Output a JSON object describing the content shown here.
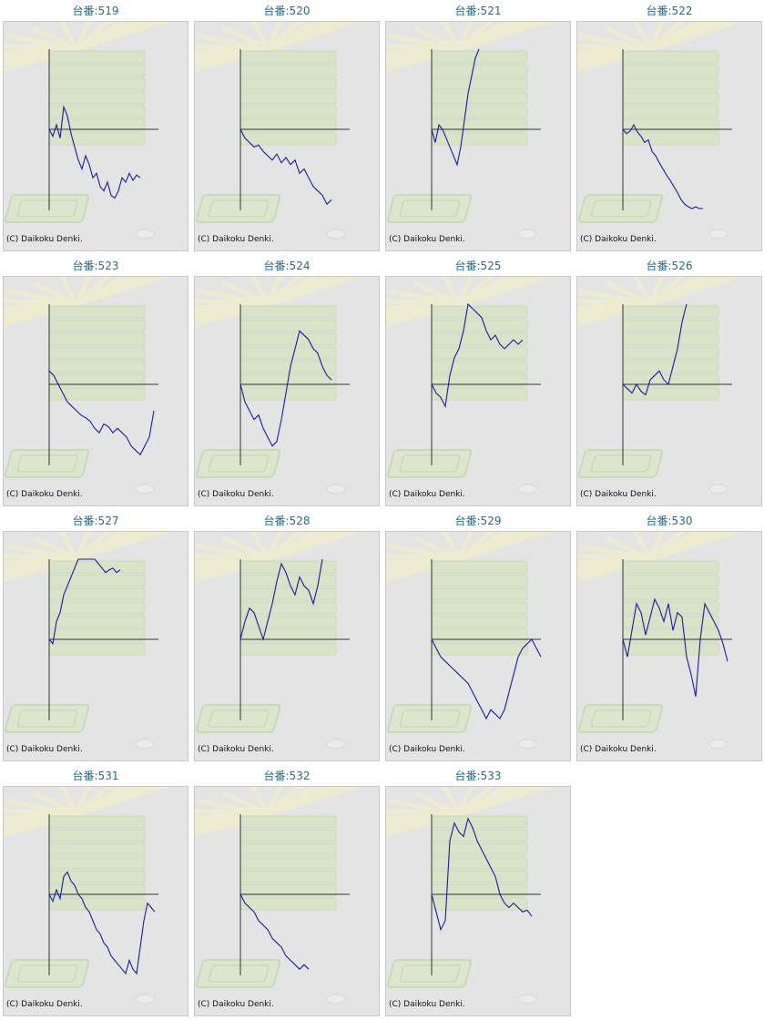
{
  "copyright_text": "(C) Daikoku Denki.",
  "colors": {
    "line": "#1a1aa0",
    "axis": "#333333",
    "background": "#e4e4e4",
    "title": "#2a6a8a"
  },
  "chart_data": [
    {
      "type": "line",
      "title": "台番:519",
      "x": [
        0,
        4,
        8,
        12,
        16,
        20,
        24,
        28,
        32,
        36,
        40,
        44,
        48,
        52,
        56,
        60,
        64,
        68,
        72,
        76,
        80,
        84,
        88,
        92,
        96,
        100
      ],
      "y": [
        0,
        -8,
        5,
        -10,
        25,
        15,
        -5,
        -20,
        -35,
        -45,
        -30,
        -40,
        -55,
        -50,
        -65,
        -70,
        -60,
        -75,
        -78,
        -70,
        -55,
        -60,
        -50,
        -58,
        -52,
        -55
      ],
      "ylim": [
        -90,
        90
      ]
    },
    {
      "type": "line",
      "title": "台番:520",
      "x": [
        0,
        5,
        10,
        15,
        20,
        25,
        30,
        35,
        40,
        45,
        50,
        55,
        60,
        65,
        70,
        75,
        80,
        85,
        90,
        95,
        100
      ],
      "y": [
        0,
        -10,
        -15,
        -20,
        -18,
        -25,
        -30,
        -35,
        -28,
        -38,
        -32,
        -40,
        -35,
        -50,
        -45,
        -55,
        -65,
        -70,
        -75,
        -85,
        -80
      ],
      "ylim": [
        -90,
        90
      ]
    },
    {
      "type": "line",
      "title": "台番:521",
      "x": [
        0,
        4,
        8,
        12,
        16,
        20,
        24,
        28,
        32,
        36,
        40,
        44,
        48,
        52
      ],
      "y": [
        0,
        -15,
        5,
        0,
        -10,
        -20,
        -30,
        -40,
        -20,
        10,
        40,
        60,
        80,
        90
      ],
      "ylim": [
        -90,
        90
      ]
    },
    {
      "type": "line",
      "title": "台番:522",
      "x": [
        0,
        4,
        8,
        12,
        16,
        20,
        24,
        28,
        32,
        36,
        40,
        44,
        48,
        52,
        56,
        60,
        64,
        68,
        72,
        76,
        80,
        84,
        88
      ],
      "y": [
        0,
        -5,
        -2,
        5,
        -3,
        -8,
        -15,
        -12,
        -25,
        -30,
        -38,
        -45,
        -52,
        -58,
        -65,
        -72,
        -80,
        -85,
        -88,
        -90,
        -88,
        -90,
        -90
      ],
      "ylim": [
        -90,
        90
      ]
    },
    {
      "type": "line",
      "title": "台番:523",
      "x": [
        0,
        5,
        10,
        15,
        20,
        25,
        30,
        35,
        40,
        45,
        50,
        55,
        60,
        65,
        70,
        75,
        80,
        85,
        90,
        95,
        100,
        105,
        110,
        115
      ],
      "y": [
        15,
        10,
        0,
        -10,
        -20,
        -25,
        -30,
        -35,
        -38,
        -42,
        -50,
        -55,
        -45,
        -48,
        -55,
        -50,
        -55,
        -60,
        -70,
        -75,
        -80,
        -70,
        -60,
        -30
      ],
      "ylim": [
        -90,
        90
      ]
    },
    {
      "type": "line",
      "title": "台番:524",
      "x": [
        0,
        5,
        10,
        15,
        20,
        25,
        30,
        35,
        40,
        45,
        50,
        55,
        60,
        65,
        70,
        75,
        80,
        85,
        90,
        95,
        100
      ],
      "y": [
        0,
        -20,
        -30,
        -40,
        -35,
        -50,
        -60,
        -70,
        -65,
        -40,
        -10,
        20,
        40,
        60,
        55,
        50,
        40,
        35,
        20,
        10,
        5
      ],
      "ylim": [
        -90,
        90
      ]
    },
    {
      "type": "line",
      "title": "台番:525",
      "x": [
        0,
        5,
        10,
        15,
        20,
        25,
        30,
        35,
        40,
        45,
        50,
        55,
        60,
        65,
        70,
        75,
        80,
        85,
        90,
        95,
        100
      ],
      "y": [
        0,
        -10,
        -15,
        -25,
        10,
        30,
        40,
        60,
        90,
        85,
        80,
        75,
        60,
        50,
        55,
        45,
        40,
        45,
        50,
        45,
        50
      ],
      "ylim": [
        -90,
        90
      ]
    },
    {
      "type": "line",
      "title": "台番:526",
      "x": [
        0,
        5,
        10,
        15,
        20,
        25,
        30,
        35,
        40,
        45,
        50,
        55,
        60,
        65,
        70
      ],
      "y": [
        0,
        -5,
        -10,
        0,
        -8,
        -12,
        5,
        10,
        15,
        5,
        0,
        20,
        40,
        70,
        90
      ],
      "ylim": [
        -90,
        90
      ]
    },
    {
      "type": "line",
      "title": "台番:527",
      "x": [
        0,
        4,
        8,
        12,
        16,
        20,
        24,
        28,
        32,
        50,
        54,
        58,
        62,
        66,
        70,
        74,
        78
      ],
      "y": [
        0,
        -5,
        20,
        30,
        50,
        60,
        70,
        80,
        90,
        90,
        85,
        80,
        75,
        78,
        80,
        75,
        78
      ],
      "ylim": [
        -90,
        90
      ]
    },
    {
      "type": "line",
      "title": "台番:528",
      "x": [
        0,
        5,
        10,
        15,
        20,
        25,
        30,
        35,
        40,
        45,
        50,
        55,
        60,
        65,
        70,
        75,
        80,
        85,
        90
      ],
      "y": [
        0,
        20,
        35,
        30,
        15,
        0,
        20,
        40,
        65,
        85,
        75,
        60,
        50,
        70,
        60,
        55,
        40,
        60,
        90
      ],
      "ylim": [
        -90,
        90
      ]
    },
    {
      "type": "line",
      "title": "台番:529",
      "x": [
        0,
        5,
        10,
        15,
        20,
        25,
        30,
        35,
        40,
        45,
        50,
        55,
        60,
        65,
        70,
        75,
        80,
        85,
        90,
        95,
        100,
        105,
        110,
        115,
        120
      ],
      "y": [
        0,
        -10,
        -20,
        -25,
        -30,
        -35,
        -40,
        -45,
        -50,
        -60,
        -70,
        -80,
        -90,
        -80,
        -85,
        -90,
        -80,
        -60,
        -40,
        -20,
        -10,
        -5,
        0,
        -10,
        -20
      ],
      "ylim": [
        -90,
        90
      ]
    },
    {
      "type": "line",
      "title": "台番:530",
      "x": [
        0,
        5,
        10,
        15,
        20,
        25,
        30,
        35,
        40,
        45,
        50,
        55,
        60,
        65,
        70,
        75,
        80,
        85,
        90,
        95,
        100,
        105,
        110,
        115
      ],
      "y": [
        0,
        -20,
        10,
        40,
        30,
        5,
        25,
        45,
        35,
        20,
        40,
        10,
        30,
        25,
        -20,
        -40,
        -65,
        0,
        40,
        30,
        20,
        10,
        -5,
        -25
      ],
      "ylim": [
        -90,
        90
      ]
    },
    {
      "type": "line",
      "title": "台番:531",
      "x": [
        0,
        4,
        8,
        12,
        16,
        20,
        24,
        28,
        32,
        36,
        40,
        44,
        48,
        52,
        56,
        60,
        64,
        68,
        72,
        76,
        80,
        84,
        88,
        92,
        96,
        100,
        104,
        108,
        112,
        116
      ],
      "y": [
        0,
        -8,
        5,
        -5,
        20,
        25,
        15,
        10,
        0,
        -5,
        -15,
        -20,
        -30,
        -40,
        -45,
        -55,
        -60,
        -70,
        -75,
        -80,
        -85,
        -90,
        -75,
        -85,
        -90,
        -60,
        -30,
        -10,
        -15,
        -20
      ],
      "ylim": [
        -90,
        90
      ]
    },
    {
      "type": "line",
      "title": "台番:532",
      "x": [
        0,
        5,
        10,
        15,
        20,
        25,
        30,
        35,
        40,
        45,
        50,
        55,
        60,
        65,
        70,
        75
      ],
      "y": [
        0,
        -10,
        -15,
        -20,
        -30,
        -35,
        -40,
        -50,
        -55,
        -60,
        -70,
        -75,
        -80,
        -85,
        -80,
        -85
      ],
      "ylim": [
        -90,
        90
      ]
    },
    {
      "type": "line",
      "title": "台番:533",
      "x": [
        0,
        5,
        10,
        15,
        20,
        25,
        30,
        35,
        40,
        45,
        50,
        55,
        60,
        65,
        70,
        75,
        80,
        85,
        90,
        95,
        100,
        105,
        110
      ],
      "y": [
        0,
        -20,
        -40,
        -30,
        60,
        80,
        70,
        65,
        85,
        75,
        60,
        50,
        40,
        30,
        20,
        0,
        -10,
        -15,
        -10,
        -15,
        -20,
        -18,
        -25
      ],
      "ylim": [
        -90,
        90
      ]
    }
  ]
}
